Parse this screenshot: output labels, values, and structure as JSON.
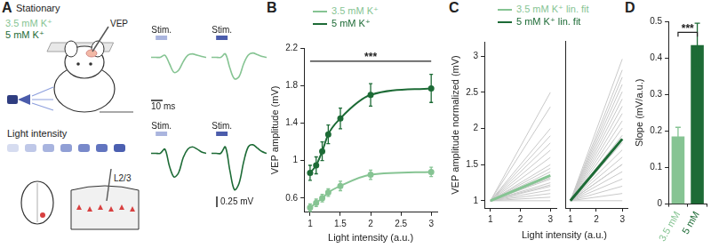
{
  "panel_labels": [
    "A",
    "B",
    "C",
    "D"
  ],
  "diagram": {
    "condition": "Stationary",
    "groups": [
      {
        "label": "3.5 mM K⁺",
        "color": "#86c493"
      },
      {
        "label": "5 mM K⁺",
        "color": "#1d6b36"
      }
    ],
    "recording": "VEP",
    "stimulus_label": "Light intensity",
    "intensity_colors": [
      "#d6dcf0",
      "#bfc8e8",
      "#a8b4df",
      "#909fd5",
      "#7889ca",
      "#6174bf",
      "#4b5fb0"
    ],
    "layer": "L2/3"
  },
  "chart_data": [
    {
      "type": "line",
      "x": [
        0,
        4,
        8,
        12,
        16,
        20,
        24,
        28,
        32,
        36,
        40,
        44,
        48
      ],
      "values": [
        0,
        0,
        0,
        0.05,
        -0.15,
        -0.35,
        -0.3,
        -0.1,
        0.05,
        0.08,
        0.05,
        0.02,
        0
      ],
      "color": "#86c493",
      "xlim": [
        0,
        48
      ],
      "ylim": [
        -0.9,
        0.3
      ],
      "tick_labels": false,
      "stimulus": {
        "label": "Stim.",
        "x": [
          4,
          14
        ],
        "color": "#aab5de"
      },
      "scale_bars": [
        {
          "axis": "x",
          "value": 10,
          "label": "10 ms"
        }
      ]
    },
    {
      "type": "line",
      "x": [
        0,
        4,
        8,
        12,
        16,
        20,
        24,
        28,
        32,
        36,
        40,
        44,
        48
      ],
      "values": [
        0,
        0,
        0,
        0.08,
        -0.25,
        -0.5,
        -0.45,
        -0.15,
        0.05,
        0.1,
        0.06,
        0.02,
        0
      ],
      "color": "#86c493",
      "xlim": [
        0,
        48
      ],
      "ylim": [
        -0.9,
        0.3
      ],
      "tick_labels": false,
      "stimulus": {
        "label": "Stim.",
        "x": [
          4,
          14
        ],
        "color": "#4b5cab"
      }
    },
    {
      "type": "line",
      "x": [
        0,
        4,
        8,
        12,
        16,
        20,
        24,
        28,
        32,
        36,
        40,
        44,
        48
      ],
      "values": [
        0,
        0,
        0,
        0.1,
        -0.3,
        -0.55,
        -0.45,
        -0.1,
        0.1,
        0.15,
        0.1,
        0.03,
        0
      ],
      "color": "#1d6b36",
      "xlim": [
        0,
        48
      ],
      "ylim": [
        -0.9,
        0.3
      ],
      "tick_labels": false,
      "stimulus": {
        "label": "Stim.",
        "x": [
          4,
          14
        ],
        "color": "#aab5de"
      }
    },
    {
      "type": "line",
      "x": [
        0,
        4,
        8,
        12,
        16,
        20,
        24,
        28,
        32,
        36,
        40,
        44,
        48
      ],
      "values": [
        0,
        0,
        0,
        0.15,
        -0.4,
        -0.85,
        -0.7,
        -0.2,
        0.15,
        0.2,
        0.12,
        0.04,
        0
      ],
      "color": "#1d6b36",
      "xlim": [
        0,
        48
      ],
      "ylim": [
        -0.9,
        0.3
      ],
      "tick_labels": false,
      "stimulus": {
        "label": "Stim.",
        "x": [
          4,
          14
        ],
        "color": "#4b5cab"
      },
      "scale_bars": [
        {
          "axis": "y",
          "value": 0.25,
          "label": "0.25 mV"
        }
      ]
    },
    {
      "type": "line",
      "x_label": "Light intensity (a.u.)",
      "y_label": "VEP amplitude (mV)",
      "x": [
        1,
        1.1,
        1.2,
        1.3,
        1.5,
        2,
        3
      ],
      "series": [
        {
          "name": "3.5 mM K⁺",
          "color": "#86c493",
          "values": [
            0.5,
            0.55,
            0.6,
            0.66,
            0.73,
            0.85,
            0.88
          ],
          "errors": [
            0.04,
            0.04,
            0.04,
            0.04,
            0.05,
            0.05,
            0.05
          ]
        },
        {
          "name": "5 mM K⁺",
          "color": "#1d6b36",
          "values": [
            0.87,
            0.95,
            1.1,
            1.28,
            1.45,
            1.7,
            1.77
          ],
          "errors": [
            0.08,
            0.09,
            0.1,
            0.1,
            0.11,
            0.12,
            0.15
          ]
        }
      ],
      "xlim": [
        0.9,
        3.1
      ],
      "xticks": [
        1,
        1.5,
        2,
        2.5,
        3
      ],
      "ylim": [
        0.45,
        2.2
      ],
      "yticks": [
        0.6,
        1,
        1.4,
        1.8,
        2.2
      ],
      "grid": false,
      "legend": "top",
      "marker": "circle",
      "line_style": "solid",
      "annotations": [
        {
          "text": "***",
          "x": [
            1,
            3
          ],
          "y": 2.06
        }
      ]
    },
    {
      "type": "line",
      "x_label": "Light intensity (a.u.)",
      "y_label": "VEP amplitude normalized (mV)",
      "legend": "top",
      "grid": false,
      "subplots": [
        {
          "x": [
            1,
            3
          ],
          "series": [
            {
              "name": "3.5 mM K⁺ lin. fit",
              "color": "#86c493",
              "values": [
                1,
                1.35
              ]
            }
          ],
          "individual": {
            "color": "#c9c9c9",
            "values": [
              [
                1,
                1.0
              ],
              [
                1,
                1.05
              ],
              [
                1,
                1.1
              ],
              [
                1,
                1.15
              ],
              [
                1,
                1.2
              ],
              [
                1,
                1.22
              ],
              [
                1,
                1.25
              ],
              [
                1,
                1.3
              ],
              [
                1,
                1.32
              ],
              [
                1,
                1.35
              ],
              [
                1,
                1.4
              ],
              [
                1,
                1.45
              ],
              [
                1,
                1.5
              ],
              [
                1,
                1.6
              ],
              [
                1,
                1.7
              ],
              [
                1,
                1.8
              ],
              [
                1,
                1.9
              ],
              [
                1,
                2.0
              ],
              [
                1,
                2.3
              ],
              [
                1,
                2.5
              ]
            ]
          },
          "xlim": [
            0.8,
            3.2
          ],
          "xticks": [
            1,
            2,
            3
          ],
          "ylim": [
            0.9,
            3.2
          ],
          "yticks": [
            1,
            1.5,
            2,
            2.5,
            3
          ]
        },
        {
          "x": [
            1,
            3
          ],
          "series": [
            {
              "name": "5 mM K⁺ lin. fit",
              "color": "#1d6b36",
              "values": [
                1,
                1.85
              ]
            }
          ],
          "individual": {
            "color": "#c9c9c9",
            "values": [
              [
                1,
                1.0
              ],
              [
                1,
                1.1
              ],
              [
                1,
                1.2
              ],
              [
                1,
                1.3
              ],
              [
                1,
                1.4
              ],
              [
                1,
                1.5
              ],
              [
                1,
                1.5
              ],
              [
                1,
                1.6
              ],
              [
                1,
                1.7
              ],
              [
                1,
                1.8
              ],
              [
                1,
                1.85
              ],
              [
                1,
                1.9
              ],
              [
                1,
                2.0
              ],
              [
                1,
                2.1
              ],
              [
                1,
                2.2
              ],
              [
                1,
                2.3
              ],
              [
                1,
                2.4
              ],
              [
                1,
                2.5
              ],
              [
                1,
                2.6
              ],
              [
                1,
                2.7
              ],
              [
                1,
                2.8
              ],
              [
                1,
                2.95
              ]
            ]
          },
          "xlim": [
            0.8,
            3.2
          ],
          "xticks": [
            1,
            2,
            3
          ],
          "ylim": [
            0.9,
            3.2
          ],
          "yticks": [
            1,
            1.5,
            2,
            2.5,
            3
          ],
          "tick_labels": "x"
        }
      ]
    },
    {
      "type": "bar",
      "categories": [
        "3.5 mM",
        "5 mM"
      ],
      "values": [
        0.185,
        0.435
      ],
      "errors": [
        0.025,
        0.06
      ],
      "colors": [
        "#86c493",
        "#1d6b36"
      ],
      "y_label": "Slope (mV/a.u.)",
      "ylim": [
        0,
        0.5
      ],
      "yticks": [
        0,
        0.1,
        0.2,
        0.3,
        0.4,
        0.5
      ],
      "grid": false,
      "annotations": [
        {
          "text": "***",
          "x": [
            "3.5 mM",
            "5 mM"
          ],
          "y": 0.47
        }
      ]
    }
  ]
}
